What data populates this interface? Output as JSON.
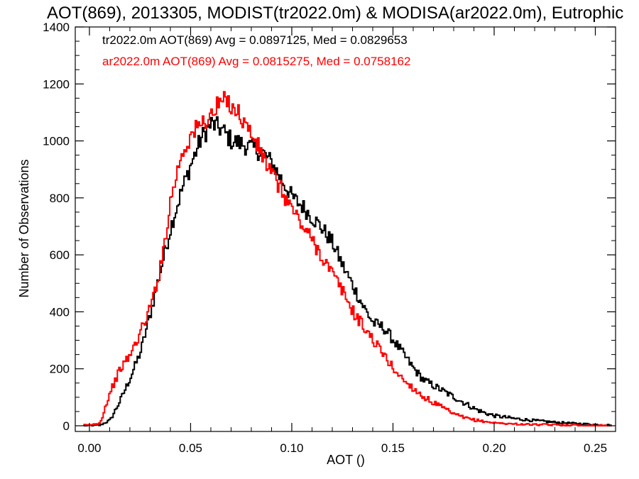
{
  "chart_data": {
    "type": "line",
    "title": "AOT(869), 2013305, MODIST(tr2022.0m) & MODISA(ar2022.0m), Eutrophic",
    "xlabel": "AOT ()",
    "ylabel": "Number of Observations",
    "xlim": [
      -0.007,
      0.26
    ],
    "ylim": [
      -20,
      1400
    ],
    "x_ticks": [
      0.0,
      0.05,
      0.1,
      0.15,
      0.2,
      0.25
    ],
    "x_tick_labels": [
      "0.00",
      "0.05",
      "0.10",
      "0.15",
      "0.20",
      "0.25"
    ],
    "y_ticks": [
      0,
      200,
      400,
      600,
      800,
      1000,
      1200,
      1400
    ],
    "y_tick_labels": [
      "0",
      "200",
      "400",
      "600",
      "800",
      "1000",
      "1200",
      "1400"
    ],
    "grid": false,
    "legend_position": "top-left",
    "series": [
      {
        "name": "tr2022.0m AOT(869) Avg = 0.0897125, Med = 0.0829653",
        "color": "#000000",
        "x": [
          0.0,
          0.005,
          0.01,
          0.015,
          0.02,
          0.025,
          0.03,
          0.035,
          0.04,
          0.045,
          0.05,
          0.055,
          0.06,
          0.065,
          0.07,
          0.075,
          0.08,
          0.085,
          0.09,
          0.095,
          0.1,
          0.105,
          0.11,
          0.115,
          0.12,
          0.125,
          0.13,
          0.135,
          0.14,
          0.145,
          0.15,
          0.155,
          0.16,
          0.165,
          0.17,
          0.175,
          0.18,
          0.185,
          0.19,
          0.195,
          0.2,
          0.21,
          0.22,
          0.23,
          0.24,
          0.25,
          0.258
        ],
        "y": [
          0,
          2,
          20,
          90,
          170,
          260,
          400,
          550,
          700,
          820,
          920,
          1010,
          1060,
          1040,
          1000,
          990,
          975,
          960,
          920,
          860,
          800,
          770,
          730,
          690,
          640,
          560,
          490,
          420,
          360,
          345,
          300,
          250,
          200,
          160,
          140,
          120,
          100,
          80,
          60,
          45,
          35,
          25,
          18,
          12,
          8,
          4,
          2
        ]
      },
      {
        "name": "ar2022.0m AOT(869) Avg = 0.0815275, Med = 0.0758162",
        "color": "#ff0000",
        "x": [
          0.0,
          0.005,
          0.01,
          0.015,
          0.02,
          0.025,
          0.03,
          0.035,
          0.04,
          0.045,
          0.05,
          0.055,
          0.06,
          0.065,
          0.07,
          0.075,
          0.08,
          0.085,
          0.09,
          0.095,
          0.1,
          0.105,
          0.11,
          0.115,
          0.12,
          0.125,
          0.13,
          0.135,
          0.14,
          0.145,
          0.15,
          0.155,
          0.16,
          0.165,
          0.17,
          0.175,
          0.18,
          0.185,
          0.19,
          0.195,
          0.2,
          0.21,
          0.22,
          0.23,
          0.24,
          0.25,
          0.258
        ],
        "y": [
          2,
          10,
          120,
          200,
          250,
          330,
          420,
          560,
          800,
          950,
          1020,
          1060,
          1090,
          1140,
          1130,
          1080,
          1020,
          950,
          880,
          820,
          760,
          700,
          650,
          590,
          530,
          470,
          400,
          350,
          300,
          250,
          200,
          160,
          130,
          100,
          80,
          60,
          40,
          28,
          20,
          15,
          10,
          6,
          4,
          3,
          2,
          1,
          0
        ]
      }
    ]
  }
}
